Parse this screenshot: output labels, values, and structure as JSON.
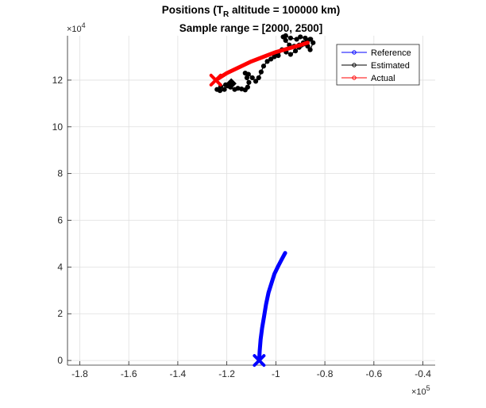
{
  "chart_data": {
    "type": "line",
    "title_main": "Positions (T",
    "title_sub": "R",
    "title_rest": " altitude = 100000 km)",
    "subtitle": "Sample range = [2000, 2500]",
    "xlabel": "",
    "ylabel": "",
    "xlim": [
      -1.85,
      -0.35
    ],
    "ylim": [
      -0.2,
      13.9
    ],
    "x_multiplier": "×10",
    "x_exponent": "5",
    "y_multiplier": "×10",
    "y_exponent": "4",
    "x_ticks": [
      -1.8,
      -1.6,
      -1.4,
      -1.2,
      -1.0,
      -0.8,
      -0.6,
      -0.4
    ],
    "x_tick_labels": [
      "-1.8",
      "-1.6",
      "-1.4",
      "-1.2",
      "-1",
      "-0.8",
      "-0.6",
      "-0.4"
    ],
    "y_ticks": [
      0,
      2,
      4,
      6,
      8,
      10,
      12
    ],
    "y_tick_labels": [
      "0",
      "2",
      "4",
      "6",
      "8",
      "10",
      "12"
    ],
    "grid": true,
    "legend_position": "top-right",
    "series": [
      {
        "name": "Reference",
        "color": "#0000ff",
        "marker": "o",
        "end_marker": "x",
        "x": [
          -1.068,
          -1.066,
          -1.062,
          -1.056,
          -1.048,
          -1.04,
          -1.03,
          -1.018,
          -1.006,
          -0.99,
          -0.975,
          -0.962
        ],
        "y": [
          0.0,
          0.4,
          0.9,
          1.4,
          1.9,
          2.4,
          2.9,
          3.3,
          3.7,
          4.05,
          4.35,
          4.6
        ]
      },
      {
        "name": "Estimated",
        "color": "#000000",
        "marker": "o",
        "end_marker": "diamond",
        "x": [
          -1.195,
          -1.21,
          -1.228,
          -1.24,
          -1.225,
          -1.205,
          -1.185,
          -1.168,
          -1.155,
          -1.14,
          -1.125,
          -1.115,
          -1.11,
          -1.118,
          -1.125,
          -1.112,
          -1.096,
          -1.082,
          -1.07,
          -1.06,
          -1.05,
          -1.035,
          -1.02,
          -1.006,
          -0.996,
          -0.99,
          -0.99,
          -0.975,
          -0.958,
          -0.94,
          -0.92,
          -0.905,
          -0.895,
          -0.885,
          -0.87,
          -0.86,
          -0.848,
          -0.858,
          -0.872,
          -0.888,
          -0.905,
          -0.925,
          -0.945,
          -0.96,
          -0.97,
          -0.96,
          -0.94,
          -0.915,
          -0.9,
          -0.88,
          -0.86
        ],
        "y": [
          11.75,
          11.6,
          11.55,
          11.6,
          11.72,
          11.8,
          11.7,
          11.6,
          11.65,
          11.62,
          11.58,
          11.7,
          11.9,
          12.1,
          12.3,
          12.25,
          12.1,
          11.95,
          12.1,
          12.35,
          12.6,
          12.8,
          12.9,
          13.0,
          13.1,
          13.05,
          13.2,
          13.3,
          13.2,
          13.1,
          13.25,
          13.4,
          13.5,
          13.55,
          13.45,
          13.3,
          13.6,
          13.75,
          13.7,
          13.6,
          13.5,
          13.45,
          13.5,
          13.7,
          13.85,
          13.9,
          13.8,
          13.75,
          13.85,
          13.8,
          13.75
        ]
      },
      {
        "name": "Actual",
        "color": "#ff0000",
        "marker": "o",
        "end_marker": "x",
        "x": [
          -1.245,
          -1.2,
          -1.15,
          -1.1,
          -1.05,
          -1.0,
          -0.95,
          -0.9,
          -0.87
        ],
        "y": [
          12.0,
          12.3,
          12.55,
          12.8,
          13.0,
          13.2,
          13.35,
          13.5,
          13.6
        ]
      }
    ]
  }
}
